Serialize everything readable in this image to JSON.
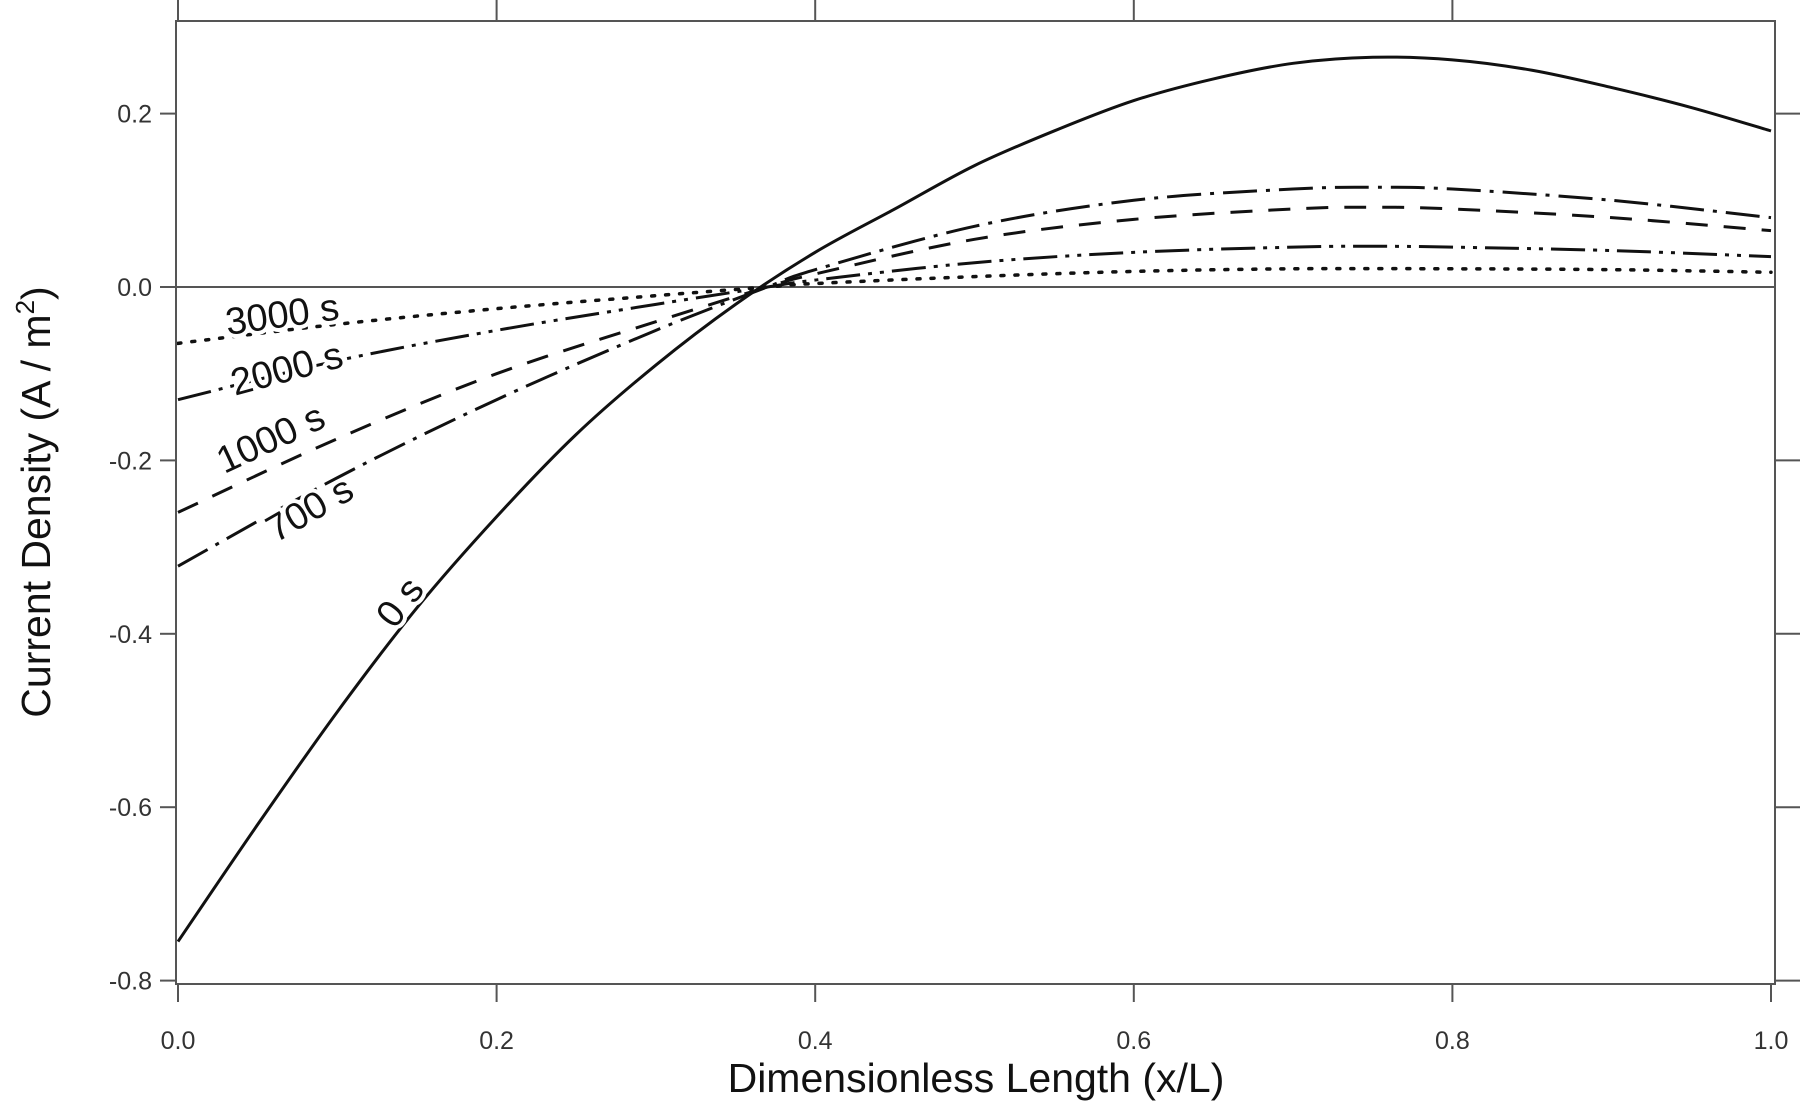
{
  "chart_data": {
    "type": "line",
    "title": "",
    "xlabel": "Dimensionless Length (x/L)",
    "ylabel": "Current Density (A / m",
    "ylabel_superscript": "2",
    "ylabel_close": ")",
    "xlim": [
      0.0,
      1.0
    ],
    "ylim": [
      -0.8,
      0.3
    ],
    "xticks": [
      "0.0",
      "0.2",
      "0.4",
      "0.6",
      "0.8",
      "1.0"
    ],
    "yticks": [
      "0.2",
      "0.0",
      "-0.2",
      "-0.4",
      "-0.6",
      "-0.8"
    ],
    "grid": false,
    "zero_line": true,
    "legend": "inline labels",
    "line_color": "#111111",
    "series": [
      {
        "name": "0 s",
        "style": "solid",
        "x": [
          0,
          0.05,
          0.1,
          0.15,
          0.2,
          0.25,
          0.3,
          0.35,
          0.4,
          0.45,
          0.5,
          0.55,
          0.6,
          0.65,
          0.7,
          0.75,
          0.8,
          0.85,
          0.9,
          0.95,
          1.0
        ],
        "y": [
          -0.755,
          -0.62,
          -0.49,
          -0.37,
          -0.265,
          -0.17,
          -0.09,
          -0.02,
          0.04,
          0.09,
          0.14,
          0.18,
          0.215,
          0.24,
          0.258,
          0.265,
          0.262,
          0.25,
          0.23,
          0.207,
          0.18
        ]
      },
      {
        "name": "700 s",
        "style": "dash-dot",
        "x": [
          0,
          0.1,
          0.2,
          0.3,
          0.37,
          0.4,
          0.5,
          0.6,
          0.7,
          0.75,
          0.8,
          0.9,
          1.0
        ],
        "y": [
          -0.322,
          -0.22,
          -0.13,
          -0.05,
          0,
          0.02,
          0.07,
          0.1,
          0.113,
          0.115,
          0.113,
          0.1,
          0.08
        ]
      },
      {
        "name": "1000 s",
        "style": "dashed",
        "x": [
          0,
          0.1,
          0.2,
          0.3,
          0.37,
          0.4,
          0.5,
          0.6,
          0.7,
          0.75,
          0.8,
          0.9,
          1.0
        ],
        "y": [
          -0.26,
          -0.175,
          -0.1,
          -0.04,
          0,
          0.015,
          0.055,
          0.078,
          0.09,
          0.092,
          0.09,
          0.08,
          0.065
        ]
      },
      {
        "name": "2000 s",
        "style": "dash-dot-dot",
        "x": [
          0,
          0.1,
          0.2,
          0.3,
          0.37,
          0.4,
          0.5,
          0.6,
          0.7,
          0.75,
          0.8,
          0.9,
          1.0
        ],
        "y": [
          -0.13,
          -0.085,
          -0.05,
          -0.02,
          0,
          0.008,
          0.028,
          0.04,
          0.046,
          0.047,
          0.046,
          0.042,
          0.035
        ]
      },
      {
        "name": "3000 s",
        "style": "dotted",
        "x": [
          0,
          0.1,
          0.2,
          0.3,
          0.37,
          0.4,
          0.5,
          0.6,
          0.7,
          0.8,
          0.9,
          1.0
        ],
        "y": [
          -0.065,
          -0.043,
          -0.025,
          -0.01,
          0,
          0.004,
          0.012,
          0.018,
          0.021,
          0.021,
          0.02,
          0.017
        ]
      }
    ]
  }
}
